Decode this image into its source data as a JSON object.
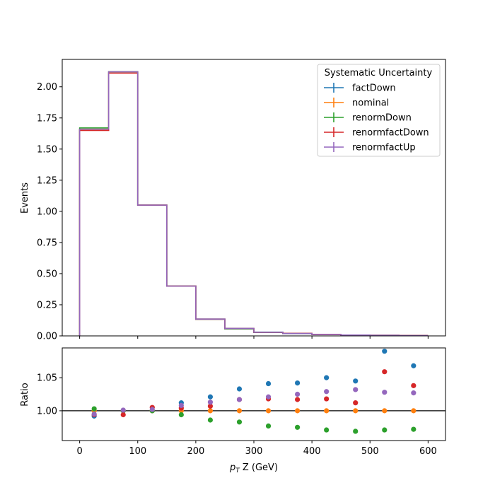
{
  "chart_data": [
    {
      "type": "step",
      "panel": "main",
      "xlabel": "",
      "ylabel": "Events",
      "xlim": [
        -30,
        630
      ],
      "ylim": [
        0,
        2.22
      ],
      "yticks": [
        0.0,
        0.25,
        0.5,
        0.75,
        1.0,
        1.25,
        1.5,
        1.75,
        2.0
      ],
      "ytick_labels": [
        "0.00",
        "0.25",
        "0.50",
        "0.75",
        "1.00",
        "1.25",
        "1.50",
        "1.75",
        "2.00"
      ],
      "bin_edges": [
        0,
        50,
        100,
        150,
        200,
        250,
        300,
        350,
        400,
        450,
        500,
        550,
        600
      ],
      "legend": {
        "title": "Systematic Uncertainty",
        "placement": "top-right"
      },
      "series": [
        {
          "name": "factDown",
          "color": "#1f77b4",
          "values": [
            1.66,
            2.12,
            1.05,
            0.4,
            0.135,
            0.06,
            0.03,
            0.02,
            0.012,
            0.007,
            0.005,
            0.003
          ]
        },
        {
          "name": "nominal",
          "color": "#ff7f0e",
          "values": [
            1.66,
            2.12,
            1.05,
            0.4,
            0.135,
            0.058,
            0.029,
            0.019,
            0.011,
            0.0065,
            0.0045,
            0.0028
          ]
        },
        {
          "name": "renormDown",
          "color": "#2ca02c",
          "values": [
            1.67,
            2.12,
            1.05,
            0.4,
            0.133,
            0.056,
            0.027,
            0.018,
            0.01,
            0.006,
            0.004,
            0.0026
          ]
        },
        {
          "name": "renormfactDown",
          "color": "#d62728",
          "values": [
            1.65,
            2.11,
            1.05,
            0.4,
            0.134,
            0.059,
            0.029,
            0.02,
            0.011,
            0.007,
            0.0048,
            0.003
          ]
        },
        {
          "name": "renormfactUp",
          "color": "#9467bd",
          "values": [
            1.66,
            2.12,
            1.05,
            0.4,
            0.135,
            0.059,
            0.029,
            0.019,
            0.011,
            0.0068,
            0.0046,
            0.0029
          ]
        }
      ]
    },
    {
      "type": "scatter",
      "panel": "ratio",
      "xlabel": "p_T Z (GeV)",
      "xlabel_main": "p",
      "xlabel_sub": "T",
      "xlabel_rest": " Z (GeV)",
      "ylabel": "Ratio",
      "xlim": [
        -30,
        630
      ],
      "ylim": [
        0.955,
        1.095
      ],
      "xticks": [
        0,
        100,
        200,
        300,
        400,
        500,
        600
      ],
      "xtick_labels": [
        "0",
        "100",
        "200",
        "300",
        "400",
        "500",
        "600"
      ],
      "yticks": [
        1.0,
        1.05
      ],
      "ytick_labels": [
        "1.00",
        "1.05"
      ],
      "reference_line": 1.0,
      "x": [
        25,
        75,
        125,
        175,
        225,
        275,
        325,
        375,
        425,
        475,
        525,
        575
      ],
      "series": [
        {
          "name": "factDown",
          "color": "#1f77b4",
          "values": [
            0.992,
            1.0,
            1.0,
            1.012,
            1.021,
            1.033,
            1.041,
            1.042,
            1.05,
            1.045,
            1.09,
            1.068
          ]
        },
        {
          "name": "nominal",
          "color": "#ff7f0e",
          "values": [
            1.0,
            1.0,
            1.0,
            1.0,
            1.0,
            1.0,
            1.0,
            1.0,
            1.0,
            1.0,
            1.0,
            1.0
          ]
        },
        {
          "name": "renormDown",
          "color": "#2ca02c",
          "values": [
            1.003,
            1.0,
            1.0,
            0.994,
            0.986,
            0.983,
            0.977,
            0.975,
            0.971,
            0.969,
            0.971,
            0.972
          ]
        },
        {
          "name": "renormfactDown",
          "color": "#d62728",
          "values": [
            0.994,
            0.994,
            1.005,
            1.004,
            1.007,
            1.017,
            1.018,
            1.017,
            1.018,
            1.012,
            1.059,
            1.038
          ]
        },
        {
          "name": "renormfactUp",
          "color": "#9467bd",
          "values": [
            0.995,
            1.001,
            1.002,
            1.008,
            1.013,
            1.017,
            1.021,
            1.025,
            1.029,
            1.032,
            1.028,
            1.027
          ]
        }
      ]
    }
  ]
}
